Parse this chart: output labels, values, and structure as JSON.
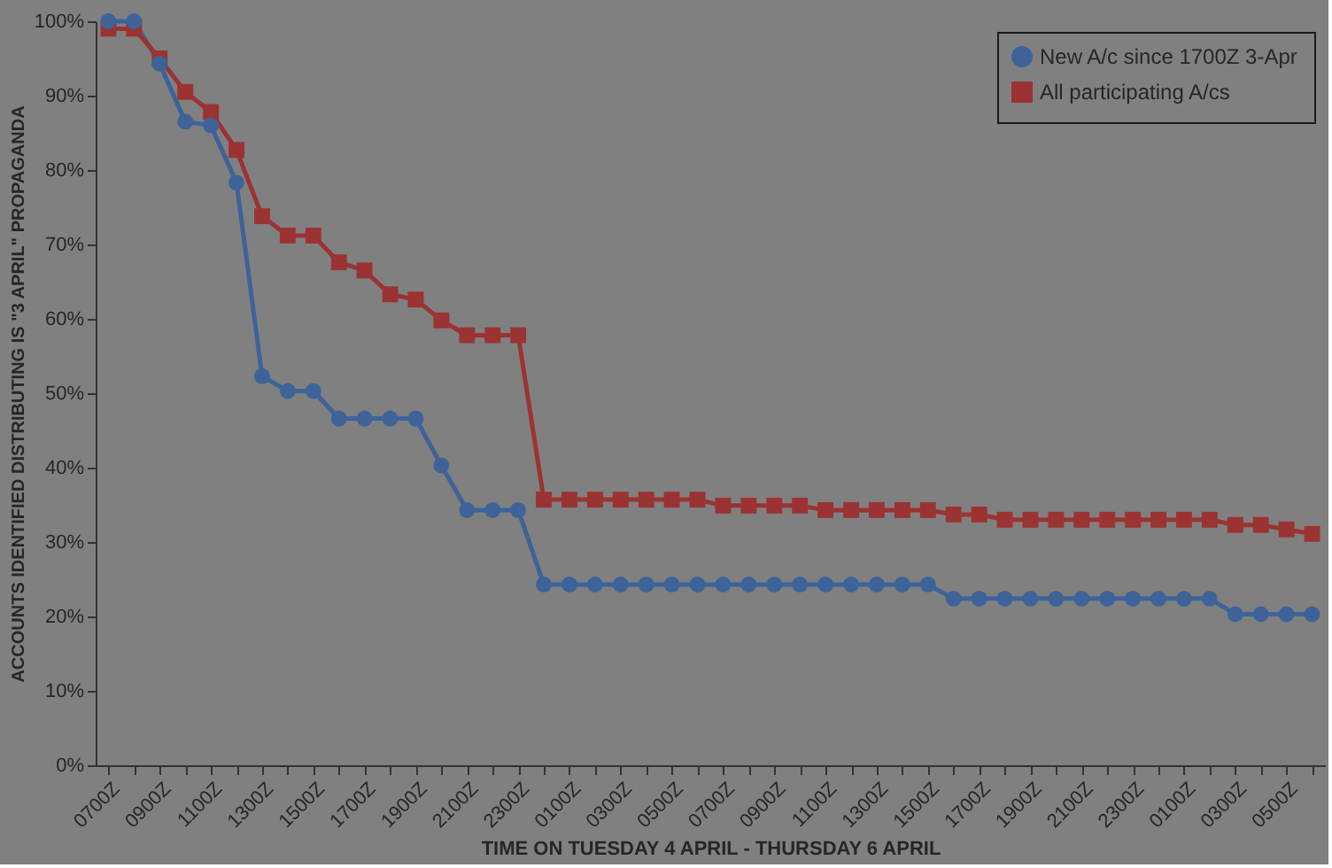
{
  "chart_data": {
    "type": "line",
    "xlabel": "TIME ON TUESDAY 4 APRIL - THURSDAY 6 APRIL",
    "ylabel": "ACCOUNTS IDENTIFIED DISTRIBUTING IS \"3 APRIL\" PROPAGANDA",
    "categories": [
      "0700Z",
      null,
      "0900Z",
      null,
      "1100Z",
      null,
      "1300Z",
      null,
      "1500Z",
      null,
      "1700Z",
      null,
      "1900Z",
      null,
      "2100Z",
      null,
      "2300Z",
      null,
      "0100Z",
      null,
      "0300Z",
      null,
      "0500Z",
      null,
      "0700Z",
      null,
      "0900Z",
      null,
      "1100Z",
      null,
      "1300Z",
      null,
      "1500Z",
      null,
      "1700Z",
      null,
      "1900Z",
      null,
      "2100Z",
      null,
      "2300Z",
      null,
      "0100Z",
      null,
      "0300Z",
      null,
      "0500Z",
      null
    ],
    "series": [
      {
        "name": "New A/c since 1700Z 3-Apr",
        "color": "#3d6399",
        "marker": "circle",
        "values": [
          100,
          100,
          94.3,
          86.5,
          86,
          78.3,
          52.3,
          50.3,
          50.3,
          46.6,
          46.6,
          46.6,
          46.6,
          40.3,
          34.3,
          34.3,
          34.3,
          24.3,
          24.3,
          24.3,
          24.3,
          24.3,
          24.3,
          24.3,
          24.3,
          24.3,
          24.3,
          24.3,
          24.3,
          24.3,
          24.3,
          24.3,
          24.3,
          22.4,
          22.4,
          22.4,
          22.4,
          22.4,
          22.4,
          22.4,
          22.4,
          22.4,
          22.4,
          22.4,
          20.3,
          20.3,
          20.3,
          20.3
        ]
      },
      {
        "name": "All participating A/cs",
        "color": "#9b3333",
        "marker": "square",
        "values": [
          99,
          99,
          95,
          90.5,
          87.8,
          82.7,
          73.8,
          71.2,
          71.2,
          67.6,
          66.5,
          63.3,
          62.6,
          59.8,
          57.8,
          57.8,
          57.8,
          35.7,
          35.7,
          35.7,
          35.7,
          35.7,
          35.7,
          35.7,
          34.9,
          34.9,
          34.9,
          34.9,
          34.3,
          34.3,
          34.3,
          34.3,
          34.3,
          33.7,
          33.7,
          33,
          33,
          33,
          33,
          33,
          33,
          33,
          33,
          33,
          32.3,
          32.3,
          31.7,
          31.1
        ]
      }
    ],
    "ylim": [
      0,
      100
    ],
    "yticks": [
      {
        "value": 0,
        "label": "0%"
      },
      {
        "value": 10,
        "label": "10%"
      },
      {
        "value": 20,
        "label": "20%"
      },
      {
        "value": 30,
        "label": "30%"
      },
      {
        "value": 40,
        "label": "40%"
      },
      {
        "value": 50,
        "label": "50%"
      },
      {
        "value": 60,
        "label": "60%"
      },
      {
        "value": 70,
        "label": "70%"
      },
      {
        "value": 80,
        "label": "80%"
      },
      {
        "value": 90,
        "label": "90%"
      },
      {
        "value": 100,
        "label": "100%"
      }
    ],
    "grid": false,
    "legend": "top right",
    "line_style": "solid"
  }
}
